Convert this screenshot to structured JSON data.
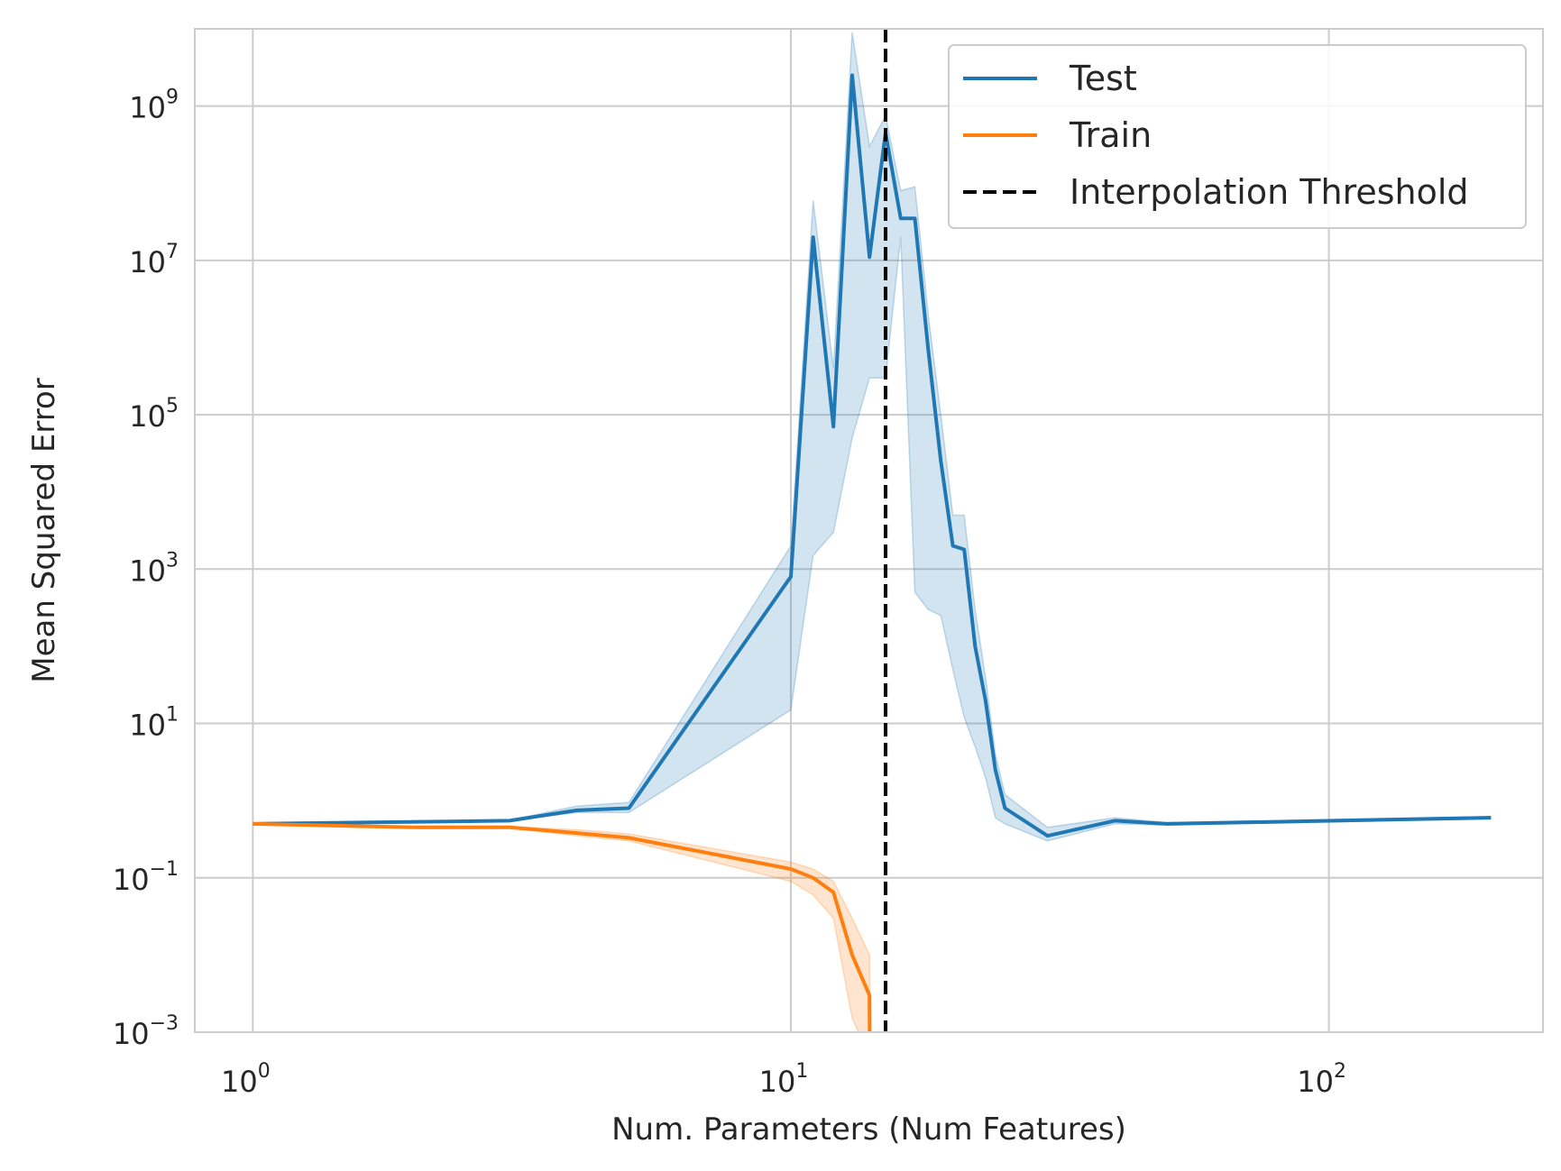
{
  "chart_data": {
    "type": "line",
    "xlabel": "Num. Parameters (Num Features)",
    "ylabel": "Mean Squared Error",
    "xscale": "log",
    "yscale": "log",
    "xlim": [
      0.78,
      250
    ],
    "ylim": [
      0.001,
      10000000000
    ],
    "x_ticks": [
      {
        "value": 1,
        "base": "10",
        "exp": "0"
      },
      {
        "value": 10,
        "base": "10",
        "exp": "1"
      },
      {
        "value": 100,
        "base": "10",
        "exp": "2"
      }
    ],
    "y_ticks": [
      {
        "value": 0.001,
        "base": "10",
        "exp": "−3"
      },
      {
        "value": 0.1,
        "base": "10",
        "exp": "−1"
      },
      {
        "value": 10,
        "base": "10",
        "exp": "1"
      },
      {
        "value": 1000,
        "base": "10",
        "exp": "3"
      },
      {
        "value": 100000,
        "base": "10",
        "exp": "5"
      },
      {
        "value": 10000000,
        "base": "10",
        "exp": "7"
      },
      {
        "value": 1000000000,
        "base": "10",
        "exp": "9"
      }
    ],
    "grid": true,
    "legend_position": "top-right",
    "colors": {
      "test": "#1f77b4",
      "train": "#ff7f0e",
      "threshold": "#000000",
      "grid": "#cccccc"
    },
    "series": [
      {
        "name": "Test",
        "color": "#1f77b4",
        "x": [
          1,
          3,
          4,
          5,
          10,
          11,
          12,
          13,
          14,
          15,
          16,
          17,
          18,
          19,
          20,
          21,
          22,
          23,
          24,
          25,
          30,
          40,
          50,
          200
        ],
        "y": [
          0.5,
          0.55,
          0.75,
          0.8,
          800,
          20000000,
          70000,
          2500000000,
          11000000,
          450000000,
          35000000,
          35000000,
          700000,
          25000,
          2000,
          1800,
          100,
          20,
          2.5,
          0.8,
          0.35,
          0.55,
          0.5,
          0.6
        ],
        "lower": [
          0.5,
          0.55,
          0.7,
          0.7,
          15,
          1500,
          3000,
          50000,
          300000,
          300000,
          20000000,
          500,
          300,
          250,
          50,
          12,
          5,
          2,
          0.6,
          0.5,
          0.3,
          0.5,
          0.48,
          0.58
        ],
        "upper": [
          0.5,
          0.56,
          0.85,
          0.95,
          2000,
          60000000,
          400000,
          9000000000,
          300000000,
          750000000,
          80000000,
          90000000,
          2000000,
          100000,
          5000,
          5000,
          300,
          40,
          4,
          1.2,
          0.45,
          0.6,
          0.52,
          0.62
        ]
      },
      {
        "name": "Train",
        "color": "#ff7f0e",
        "x": [
          1,
          2,
          3,
          4,
          5,
          10,
          11,
          12,
          13,
          14,
          14.02
        ],
        "y": [
          0.5,
          0.45,
          0.45,
          0.38,
          0.33,
          0.13,
          0.1,
          0.065,
          0.01,
          0.003,
          0.0005
        ],
        "lower": [
          0.5,
          0.44,
          0.44,
          0.35,
          0.3,
          0.09,
          0.06,
          0.03,
          0.0015,
          0.0005,
          0.0005
        ],
        "upper": [
          0.5,
          0.46,
          0.46,
          0.42,
          0.37,
          0.16,
          0.13,
          0.09,
          0.03,
          0.01,
          0.003
        ]
      }
    ],
    "vline": {
      "name": "Interpolation Threshold",
      "x": 15,
      "color": "#000000",
      "style": "dashed"
    },
    "legend": [
      {
        "label": "Test",
        "color": "#1f77b4",
        "style": "solid"
      },
      {
        "label": "Train",
        "color": "#ff7f0e",
        "style": "solid"
      },
      {
        "label": "Interpolation Threshold",
        "color": "#000000",
        "style": "dashed"
      }
    ]
  }
}
